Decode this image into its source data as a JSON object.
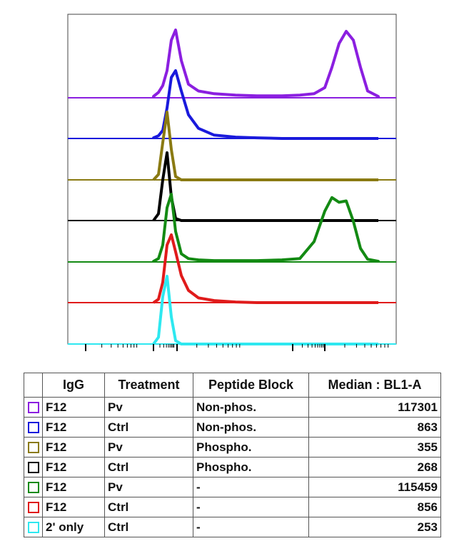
{
  "chart_data": {
    "type": "line",
    "description_kind": "stacked flow cytometry histogram overlay (offset)",
    "x_scale": "log",
    "series": [
      {
        "color": "#8b1fe0",
        "values": [
          0.02,
          0.08,
          0.18,
          0.4,
          0.85,
          1.0,
          0.55,
          0.2,
          0.1,
          0.06,
          0.04,
          0.03,
          0.03,
          0.04,
          0.06,
          0.15,
          0.45,
          0.8,
          0.98,
          0.85,
          0.45,
          0.1,
          0.02
        ]
      },
      {
        "color": "#1a1adc",
        "values": [
          0.01,
          0.04,
          0.12,
          0.45,
          0.9,
          1.0,
          0.7,
          0.35,
          0.15,
          0.05,
          0.02,
          0.01,
          0.0,
          0.0,
          0.0,
          0.0,
          0.0,
          0.0,
          0.0,
          0.0,
          0.0,
          0.0,
          0.0
        ]
      },
      {
        "color": "#8a7a12",
        "values": [
          0.0,
          0.08,
          0.55,
          1.0,
          0.45,
          0.05,
          0.0,
          0.0,
          0.0,
          0.0,
          0.0,
          0.0,
          0.0,
          0.0,
          0.0,
          0.0,
          0.0,
          0.0,
          0.0,
          0.0,
          0.0,
          0.0,
          0.0
        ]
      },
      {
        "color": "#000000",
        "values": [
          0.0,
          0.1,
          0.6,
          1.0,
          0.35,
          0.03,
          0.0,
          0.0,
          0.0,
          0.0,
          0.0,
          0.0,
          0.0,
          0.0,
          0.0,
          0.0,
          0.0,
          0.0,
          0.0,
          0.0,
          0.0,
          0.0,
          0.0
        ]
      },
      {
        "color": "#138a13",
        "values": [
          0.01,
          0.05,
          0.25,
          0.8,
          1.0,
          0.45,
          0.12,
          0.05,
          0.03,
          0.02,
          0.02,
          0.02,
          0.03,
          0.05,
          0.3,
          0.75,
          0.95,
          0.88,
          0.9,
          0.6,
          0.2,
          0.04,
          0.01
        ]
      },
      {
        "color": "#e01b1b",
        "values": [
          0.0,
          0.05,
          0.3,
          0.85,
          1.0,
          0.75,
          0.4,
          0.18,
          0.07,
          0.03,
          0.01,
          0.0,
          0.0,
          0.0,
          0.0,
          0.0,
          0.0,
          0.0,
          0.0,
          0.0,
          0.0,
          0.0,
          0.0
        ]
      },
      {
        "color": "#2ee8f0",
        "values": [
          0.0,
          0.1,
          0.7,
          1.0,
          0.4,
          0.05,
          0.0,
          0.0,
          0.0,
          0.0,
          0.0,
          0.0,
          0.0,
          0.0,
          0.0,
          0.0,
          0.0,
          0.0,
          0.0,
          0.0,
          0.0,
          0.0,
          0.0
        ]
      }
    ]
  },
  "table": {
    "headers": [
      "",
      "IgG",
      "Treatment",
      "Peptide Block",
      "Median : BL1-A"
    ],
    "rows": [
      {
        "color": "#8b1fe0",
        "igg": "F12",
        "treatment": "Pv",
        "block": "Non-phos.",
        "median": "117301"
      },
      {
        "color": "#1a1adc",
        "igg": "F12",
        "treatment": "Ctrl",
        "block": "Non-phos.",
        "median": "863"
      },
      {
        "color": "#8a7a12",
        "igg": "F12",
        "treatment": "Pv",
        "block": "Phospho.",
        "median": "355"
      },
      {
        "color": "#000000",
        "igg": "F12",
        "treatment": "Ctrl",
        "block": "Phospho.",
        "median": "268"
      },
      {
        "color": "#138a13",
        "igg": "F12",
        "treatment": "Pv",
        "block": "-",
        "median": "115459"
      },
      {
        "color": "#e01b1b",
        "igg": "F12",
        "treatment": "Ctrl",
        "block": "-",
        "median": "856"
      },
      {
        "color": "#2ee8f0",
        "igg": "2' only",
        "treatment": "Ctrl",
        "block": "-",
        "median": "253"
      }
    ]
  }
}
